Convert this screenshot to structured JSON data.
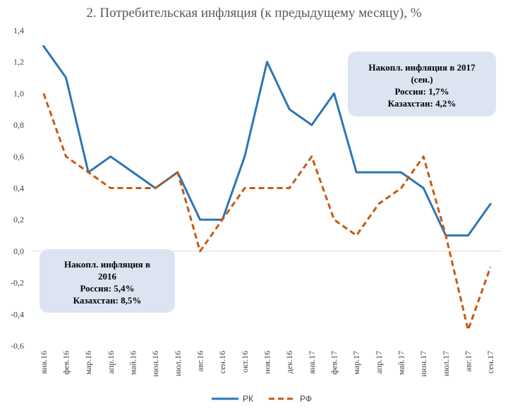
{
  "chart_data": {
    "type": "line",
    "title": "2. Потребительская инфляция (к предыдущему месяцу), %",
    "categories": [
      "янв.16",
      "фев.16",
      "мар.16",
      "апр.16",
      "май.16",
      "июн.16",
      "июл.16",
      "авг.16",
      "сен.16",
      "окт.16",
      "ноя.16",
      "дек.16",
      "янв.17",
      "фев.17",
      "мар.17",
      "апр.17",
      "май.17",
      "июн.17",
      "июл.17",
      "авг.17",
      "сен.17"
    ],
    "series": [
      {
        "name": "РК",
        "color": "#2E75B6",
        "style": "solid",
        "values": [
          1.3,
          1.1,
          0.5,
          0.6,
          0.5,
          0.4,
          0.5,
          0.2,
          0.2,
          0.6,
          1.2,
          0.9,
          0.8,
          1.0,
          0.5,
          0.5,
          0.5,
          0.4,
          0.1,
          0.1,
          0.3
        ]
      },
      {
        "name": "РФ",
        "color": "#C55A11",
        "style": "dashed",
        "values": [
          1.0,
          0.6,
          0.5,
          0.4,
          0.4,
          0.4,
          0.5,
          0.0,
          0.2,
          0.4,
          0.4,
          0.4,
          0.6,
          0.2,
          0.1,
          0.3,
          0.4,
          0.6,
          0.1,
          -0.5,
          -0.1
        ]
      }
    ],
    "ylim": [
      -0.6,
      1.4
    ],
    "yticks": [
      "1,4",
      "1,2",
      "1,0",
      "0,8",
      "0,6",
      "0,4",
      "0,2",
      "0,0",
      "-0,2",
      "-0,4",
      "-0,6"
    ],
    "ytick_values": [
      1.4,
      1.2,
      1.0,
      0.8,
      0.6,
      0.4,
      0.2,
      0.0,
      -0.2,
      -0.4,
      -0.6
    ],
    "grid": false,
    "legend": "bottom",
    "annotations": [
      {
        "lines": [
          "Накопл. инфляция в 2017",
          "(сен.)",
          "Россия: 1,7%",
          "Казахстан: 4,2%"
        ]
      },
      {
        "lines": [
          "Накопл. инфляция в",
          "2016",
          "Россия: 5,4%",
          "Казахстан: 8,5%"
        ]
      }
    ]
  }
}
